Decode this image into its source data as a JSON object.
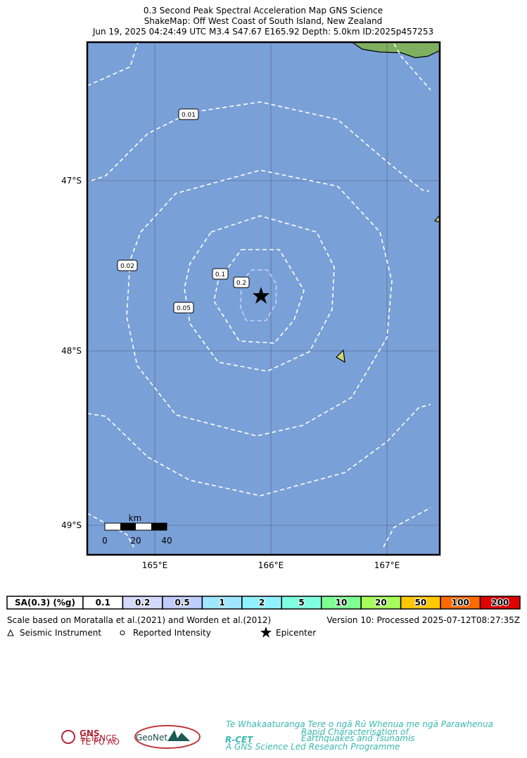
{
  "header": {
    "title_lines": [
      "0.3 Second Peak Spectral Acceleration Map GNS Science",
      "ShakeMap: Off West Coast of South Island, New Zealand",
      "Jun 19, 2025 04:24:49 UTC M3.4 S47.67 E165.92 Depth: 5.0km ID:2025p457253"
    ]
  },
  "map": {
    "lat_labels": [
      "47°S",
      "48°S",
      "49°S"
    ],
    "lon_labels": [
      "165°E",
      "166°E",
      "167°E"
    ],
    "contour_labels": [
      "0.01",
      "0.02",
      "0.05",
      "0.1",
      "0.2"
    ],
    "scale_bar": {
      "unit": "km",
      "ticks": [
        "0",
        "20",
        "40"
      ]
    }
  },
  "legend": {
    "scale_title": "SA(0.3) (%g)",
    "bins": [
      {
        "label": "0.1",
        "color": "#ffffff"
      },
      {
        "label": "0.2",
        "color": "#d4d9ff"
      },
      {
        "label": "0.5",
        "color": "#bfccff"
      },
      {
        "label": "1",
        "color": "#a0e6ff"
      },
      {
        "label": "2",
        "color": "#90f2ff"
      },
      {
        "label": "5",
        "color": "#80ffe0"
      },
      {
        "label": "10",
        "color": "#7dff94"
      },
      {
        "label": "20",
        "color": "#a6ff5a"
      },
      {
        "label": "50",
        "color": "#ffc800"
      },
      {
        "label": "100",
        "color": "#ff6a00"
      },
      {
        "label": "200",
        "color": "#e00000"
      }
    ]
  },
  "notes": {
    "reference": "Scale based on Moratalla et al.(2021) and Worden et al.(2012)",
    "version": "Version 10: Processed 2025-07-12T08:27:35Z"
  },
  "symbols": [
    "Seismic Instrument",
    "Reported Intensity",
    "Epicenter"
  ],
  "logos": {
    "gns": "GNS",
    "gns_sub": "SCIENCE",
    "gns_maori": "TE PŪ AO",
    "geonet": "GeoNet",
    "rcet": "R-CET",
    "rcet_maori": "Te Whakaaturanga Tere o ngā Rū Whenua me ngā Parawhenua",
    "rcet_line1": "Rapid Characterisation of",
    "rcet_line2": "Earthquakes and Tsunamis",
    "rcet_sub": "A GNS Science Led Research Programme"
  }
}
